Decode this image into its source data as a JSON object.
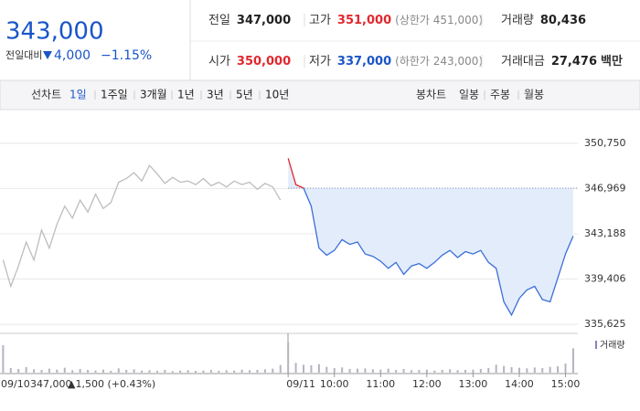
{
  "header": {
    "price": "343,000",
    "price_color": "#1a55c8",
    "change_label": "전일대비",
    "change": "4,000",
    "change_pct": "−1.15%",
    "stats": [
      {
        "label": "전일",
        "value": "347,000",
        "color": "#222222"
      },
      {
        "label": "고가",
        "value": "351,000",
        "note": "(상한가 451,000)",
        "color": "#e0282e"
      },
      {
        "label": "거래량",
        "value": "80,436",
        "color": "#222222"
      },
      {
        "label": "시가",
        "value": "350,000",
        "color": "#e0282e"
      },
      {
        "label": "저가",
        "value": "337,000",
        "note": "(하한가 243,000)",
        "color": "#1a55c8"
      },
      {
        "label": "거래대금",
        "value": "27,476",
        "unit": "백만",
        "color": "#222222"
      }
    ]
  },
  "tabs": {
    "line_label": "선차트",
    "line_periods": [
      "1일",
      "1주일",
      "3개월",
      "1년",
      "3년",
      "5년",
      "10년"
    ],
    "selected": 0,
    "candle_label": "봉차트",
    "candle_periods": [
      "일봉",
      "주봉",
      "월봉"
    ]
  },
  "chart_data": {
    "type": "line",
    "xlim": [
      -374,
      376
    ],
    "ylim": [
      335100,
      352800
    ],
    "yticks": [
      {
        "value": 350750,
        "label": "350,750"
      },
      {
        "value": 346969,
        "label": "346,969"
      },
      {
        "value": 343188,
        "label": "343,188"
      },
      {
        "value": 339406,
        "label": "339,406"
      },
      {
        "value": 335625,
        "label": "335,625"
      }
    ],
    "xticks": [
      {
        "value": 0,
        "label": "09/11"
      },
      {
        "value": 60,
        "label": "10:00"
      },
      {
        "value": 120,
        "label": "11:00"
      },
      {
        "value": 180,
        "label": "12:00"
      },
      {
        "value": 240,
        "label": "13:00"
      },
      {
        "value": 300,
        "label": "14:00"
      },
      {
        "value": 360,
        "label": "15:00"
      }
    ],
    "grid": true,
    "baseline": 347000,
    "prev_day": {
      "date": "09/10",
      "close": "347,000",
      "change": "▲1,500 (+0.43%)"
    },
    "series": [
      {
        "color": "#bdbdbd",
        "x": [
          -370,
          -360,
          -350,
          -340,
          -330,
          -320,
          -310,
          -300,
          -290,
          -280,
          -270,
          -260,
          -250,
          -240,
          -230,
          -220,
          -210,
          -200,
          -190,
          -180,
          -170,
          -160,
          -150,
          -140,
          -130,
          -120,
          -110,
          -100,
          -90,
          -80,
          -70,
          -60,
          -50,
          -40,
          -30,
          -20,
          -10
        ],
        "values": [
          341000,
          338800,
          340500,
          342500,
          341000,
          343500,
          342000,
          344000,
          345500,
          344500,
          346000,
          345000,
          346500,
          345300,
          345800,
          347500,
          347800,
          348300,
          347600,
          348900,
          348200,
          347400,
          347900,
          347500,
          347600,
          347300,
          347800,
          347200,
          347500,
          347100,
          347600,
          347300,
          347500,
          346900,
          347400,
          347100,
          346000
        ]
      },
      {
        "color": "#3a6fd8",
        "up_color": "#e0282e",
        "x": [
          0,
          10,
          20,
          30,
          40,
          50,
          60,
          70,
          80,
          90,
          100,
          110,
          120,
          130,
          140,
          150,
          160,
          170,
          180,
          190,
          200,
          210,
          220,
          230,
          240,
          250,
          260,
          270,
          280,
          290,
          300,
          310,
          320,
          330,
          340,
          350,
          360,
          370
        ],
        "values": [
          349500,
          347300,
          347000,
          345500,
          342000,
          341400,
          341800,
          342700,
          342300,
          342500,
          341500,
          341300,
          340900,
          340300,
          340800,
          339800,
          340500,
          340700,
          340300,
          340800,
          341400,
          341800,
          341200,
          341700,
          341500,
          341800,
          340800,
          340300,
          337500,
          336400,
          337800,
          338500,
          338800,
          337700,
          337500,
          339500,
          341500,
          343000
        ]
      }
    ],
    "volume": {
      "name": "거래량",
      "color": "#b4b4c0",
      "ylim": [
        0,
        12000
      ],
      "values": [
        9000,
        1500,
        1200,
        1800,
        1100,
        900,
        1300,
        1000,
        1600,
        800,
        1200,
        900,
        700,
        1000,
        600,
        1400,
        900,
        1100,
        700,
        800,
        600,
        900,
        500,
        700,
        800,
        600,
        700,
        900,
        600,
        800,
        700,
        1000,
        800,
        900,
        1100,
        1300,
        2500,
        10000,
        3200,
        2600,
        2400,
        2800,
        1900,
        1500,
        1700,
        1200,
        1300,
        1400,
        1100,
        1000,
        1300,
        900,
        1200,
        800,
        900,
        1000,
        700,
        900,
        1100,
        800,
        900,
        1000,
        1200,
        1500,
        2600,
        2200,
        1800,
        1600,
        1400,
        1700,
        1500,
        1900,
        2100,
        3000,
        8000
      ]
    }
  }
}
